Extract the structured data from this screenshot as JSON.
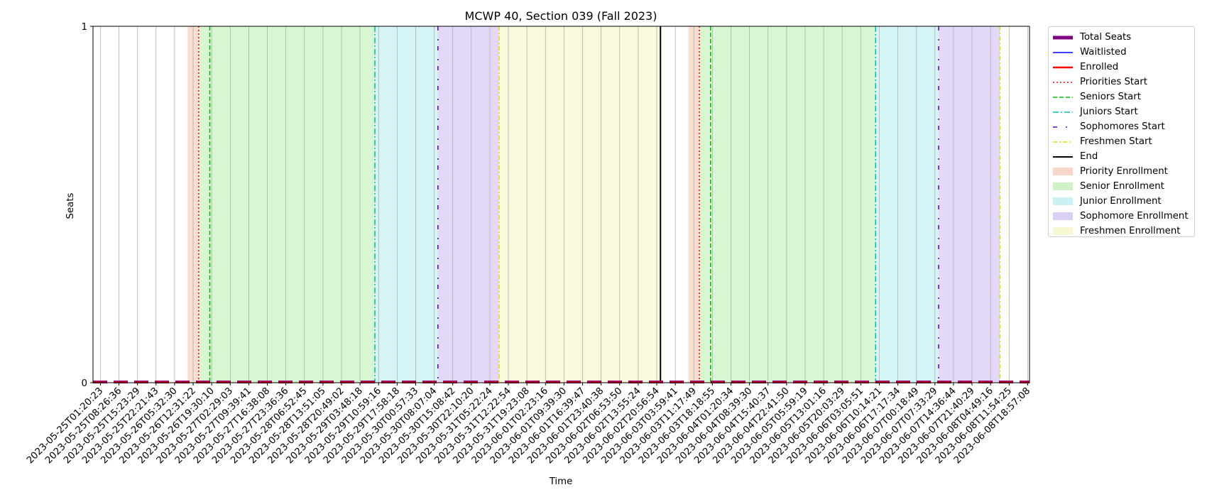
{
  "chart_data": {
    "type": "line",
    "title": "MCWP 40, Section 039 (Fall 2023)",
    "xlabel": "Time",
    "ylabel": "Seats",
    "ylim": [
      0,
      1
    ],
    "yticks": [
      "0",
      "1"
    ],
    "x_ticks": [
      "2023-05-25T01:20:23",
      "2023-05-25T08:26:36",
      "2023-05-25T15:23:29",
      "2023-05-25T22:21:43",
      "2023-05-26T05:32:30",
      "2023-05-26T12:31:22",
      "2023-05-26T19:30:10",
      "2023-05-27T02:29:03",
      "2023-05-27T09:39:41",
      "2023-05-27T16:38:08",
      "2023-05-27T23:36:36",
      "2023-05-28T06:52:45",
      "2023-05-28T13:51:05",
      "2023-05-28T20:49:02",
      "2023-05-29T03:48:18",
      "2023-05-29T10:59:16",
      "2023-05-29T17:58:18",
      "2023-05-30T00:57:33",
      "2023-05-30T08:07:04",
      "2023-05-30T15:08:42",
      "2023-05-30T22:10:20",
      "2023-05-31T05:22:24",
      "2023-05-31T12:22:54",
      "2023-05-31T19:23:08",
      "2023-06-01T02:23:16",
      "2023-06-01T09:39:30",
      "2023-06-01T16:39:47",
      "2023-06-01T23:40:38",
      "2023-06-02T06:53:50",
      "2023-06-02T13:55:24",
      "2023-06-02T20:56:54",
      "2023-06-03T03:59:41",
      "2023-06-03T11:17:49",
      "2023-06-03T18:18:55",
      "2023-06-04T01:20:34",
      "2023-06-04T08:39:30",
      "2023-06-04T15:40:37",
      "2023-06-04T22:41:50",
      "2023-06-05T05:59:19",
      "2023-06-05T13:01:16",
      "2023-06-05T20:03:29",
      "2023-06-06T03:05:51",
      "2023-06-06T10:14:21",
      "2023-06-06T17:17:34",
      "2023-06-07T00:18:49",
      "2023-06-07T07:33:29",
      "2023-06-07T14:36:44",
      "2023-06-07T21:40:29",
      "2023-06-08T04:49:16",
      "2023-06-08T11:54:25",
      "2023-06-08T18:57:08"
    ],
    "series": [
      {
        "name": "Total Seats",
        "color": "#800080",
        "style": "thick-solid",
        "values": "0 throughout"
      },
      {
        "name": "Waitlisted",
        "color": "#0000ff",
        "style": "solid",
        "values": "0 throughout"
      },
      {
        "name": "Enrolled",
        "color": "#ff0000",
        "style": "solid",
        "values": "0 throughout"
      }
    ],
    "event_lines": [
      {
        "name": "Priorities Start",
        "color": "#ff0000",
        "style": "dotted",
        "at": [
          5.3,
          32.3
        ]
      },
      {
        "name": "Seniors Start",
        "color": "#00bb00",
        "style": "dashed",
        "at": [
          5.9,
          32.9
        ]
      },
      {
        "name": "Juniors Start",
        "color": "#00c0c0",
        "style": "dashdot",
        "at": [
          14.8,
          41.8
        ]
      },
      {
        "name": "Sophomores Start",
        "color": "#6000c0",
        "style": "dashdot-sparse",
        "at": [
          18.2,
          45.2
        ]
      },
      {
        "name": "Freshmen Start",
        "color": "#e6d800",
        "style": "dashdot",
        "at": [
          21.5,
          48.5
        ]
      },
      {
        "name": "End",
        "color": "#000000",
        "style": "solid",
        "at": [
          30.2
        ]
      }
    ],
    "periods": [
      {
        "name": "Priority Enrollment",
        "color": "#f4b69e",
        "spans": [
          [
            4.7,
            5.3
          ],
          [
            31.7,
            32.3
          ]
        ]
      },
      {
        "name": "Senior Enrollment",
        "color": "#a9eb9a",
        "spans": [
          [
            5.3,
            14.8
          ],
          [
            32.3,
            41.8
          ]
        ]
      },
      {
        "name": "Junior Enrollment",
        "color": "#9fe6ea",
        "spans": [
          [
            14.8,
            18.2
          ],
          [
            41.8,
            45.2
          ]
        ]
      },
      {
        "name": "Sophomore Enrollment",
        "color": "#c0a8ee",
        "spans": [
          [
            18.2,
            21.5
          ],
          [
            45.2,
            48.5
          ]
        ]
      },
      {
        "name": "Freshmen Enrollment",
        "color": "#f2f2b0",
        "spans": [
          [
            21.5,
            30.2
          ]
        ]
      }
    ],
    "legend": {
      "placement": "outside-right-top",
      "items": [
        {
          "label": "Total Seats",
          "kind": "line",
          "color": "#800080",
          "width": 5,
          "dash": ""
        },
        {
          "label": "Waitlisted",
          "kind": "line",
          "color": "#0000ff",
          "width": 1.5,
          "dash": ""
        },
        {
          "label": "Enrolled",
          "kind": "line",
          "color": "#ff0000",
          "width": 2.5,
          "dash": ""
        },
        {
          "label": "Priorities Start",
          "kind": "line",
          "color": "#ff0000",
          "width": 1.5,
          "dash": "2,3"
        },
        {
          "label": "Seniors Start",
          "kind": "line",
          "color": "#00bb00",
          "width": 1.5,
          "dash": "6,3"
        },
        {
          "label": "Juniors Start",
          "kind": "line",
          "color": "#00c0c0",
          "width": 1.5,
          "dash": "8,3,2,3"
        },
        {
          "label": "Sophomores Start",
          "kind": "line",
          "color": "#6000c0",
          "width": 1.5,
          "dash": "6,12,2,8"
        },
        {
          "label": "Freshmen Start",
          "kind": "line",
          "color": "#e6d800",
          "width": 1.5,
          "dash": "6,3,2,3"
        },
        {
          "label": "End",
          "kind": "line",
          "color": "#000000",
          "width": 2,
          "dash": ""
        },
        {
          "label": "Priority Enrollment",
          "kind": "patch",
          "color": "#f4b69e"
        },
        {
          "label": "Senior Enrollment",
          "kind": "patch",
          "color": "#a9eb9a"
        },
        {
          "label": "Junior Enrollment",
          "kind": "patch",
          "color": "#9fe6ea"
        },
        {
          "label": "Sophomore Enrollment",
          "kind": "patch",
          "color": "#c0a8ee"
        },
        {
          "label": "Freshmen Enrollment",
          "kind": "patch",
          "color": "#f2f2b0"
        }
      ]
    },
    "grid": true
  }
}
